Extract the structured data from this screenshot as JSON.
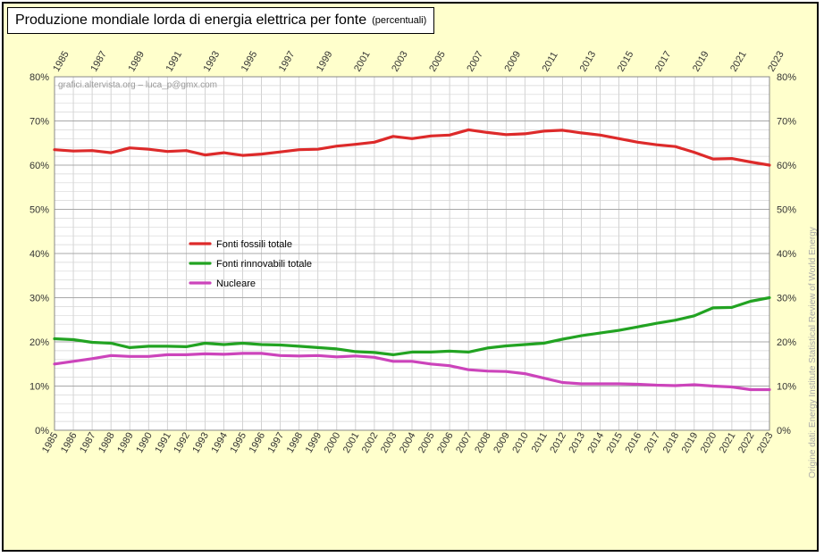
{
  "header": {
    "title": "Produzione mondiale lorda di energia elettrica per fonte",
    "subtitle": "(percentuali)"
  },
  "watermark": "grafici.altervista.org  –  luca_p@gmx.com",
  "source_note": "Origine dati: Energy Institute Statistical Review of World Energy",
  "chart_data": {
    "type": "line",
    "title": "Produzione mondiale lorda di energia elettrica per fonte",
    "subtitle": "(percentuali)",
    "xlabel": "",
    "ylabel": "",
    "x": [
      1985,
      1986,
      1987,
      1988,
      1989,
      1990,
      1991,
      1992,
      1993,
      1994,
      1995,
      1996,
      1997,
      1998,
      1999,
      2000,
      2001,
      2002,
      2003,
      2004,
      2005,
      2006,
      2007,
      2008,
      2009,
      2010,
      2011,
      2012,
      2013,
      2014,
      2015,
      2016,
      2017,
      2018,
      2019,
      2020,
      2021,
      2022,
      2023
    ],
    "x_top_ticks": [
      1985,
      1987,
      1989,
      1991,
      1993,
      1995,
      1997,
      1999,
      2001,
      2003,
      2005,
      2007,
      2009,
      2011,
      2013,
      2015,
      2017,
      2019,
      2021,
      2023
    ],
    "y_ticks": [
      "0%",
      "10%",
      "20%",
      "30%",
      "40%",
      "50%",
      "60%",
      "70%",
      "80%"
    ],
    "ylim": [
      0,
      80
    ],
    "grid": true,
    "legend_position": "center-left",
    "series": [
      {
        "name": "Fonti fossili totale",
        "color": "#dd2a2a",
        "values": [
          63.5,
          63.2,
          63.3,
          62.8,
          63.9,
          63.6,
          63.1,
          63.3,
          62.3,
          62.8,
          62.2,
          62.5,
          63.0,
          63.5,
          63.6,
          64.3,
          64.7,
          65.2,
          66.5,
          66.0,
          66.6,
          66.8,
          68.0,
          67.4,
          66.9,
          67.1,
          67.7,
          67.9,
          67.3,
          66.8,
          66.0,
          65.2,
          64.6,
          64.2,
          62.9,
          61.4,
          61.5,
          60.7,
          60.0
        ]
      },
      {
        "name": "Fonti rinnovabili totale",
        "color": "#22a322",
        "values": [
          20.7,
          20.5,
          19.9,
          19.7,
          18.7,
          19.0,
          19.0,
          18.9,
          19.7,
          19.4,
          19.7,
          19.4,
          19.3,
          19.0,
          18.7,
          18.4,
          17.8,
          17.6,
          17.1,
          17.7,
          17.7,
          17.9,
          17.7,
          18.6,
          19.1,
          19.4,
          19.7,
          20.6,
          21.4,
          22.0,
          22.6,
          23.4,
          24.2,
          24.9,
          25.9,
          27.7,
          27.8,
          29.2,
          30.0
        ]
      },
      {
        "name": "Nucleare",
        "color": "#cc44bb",
        "values": [
          15.0,
          15.6,
          16.2,
          16.9,
          16.7,
          16.7,
          17.1,
          17.1,
          17.3,
          17.2,
          17.4,
          17.4,
          16.9,
          16.8,
          16.9,
          16.6,
          16.8,
          16.5,
          15.6,
          15.6,
          15.0,
          14.6,
          13.7,
          13.4,
          13.3,
          12.8,
          11.8,
          10.8,
          10.5,
          10.5,
          10.5,
          10.4,
          10.2,
          10.1,
          10.3,
          10.0,
          9.8,
          9.2,
          9.2
        ]
      }
    ]
  }
}
